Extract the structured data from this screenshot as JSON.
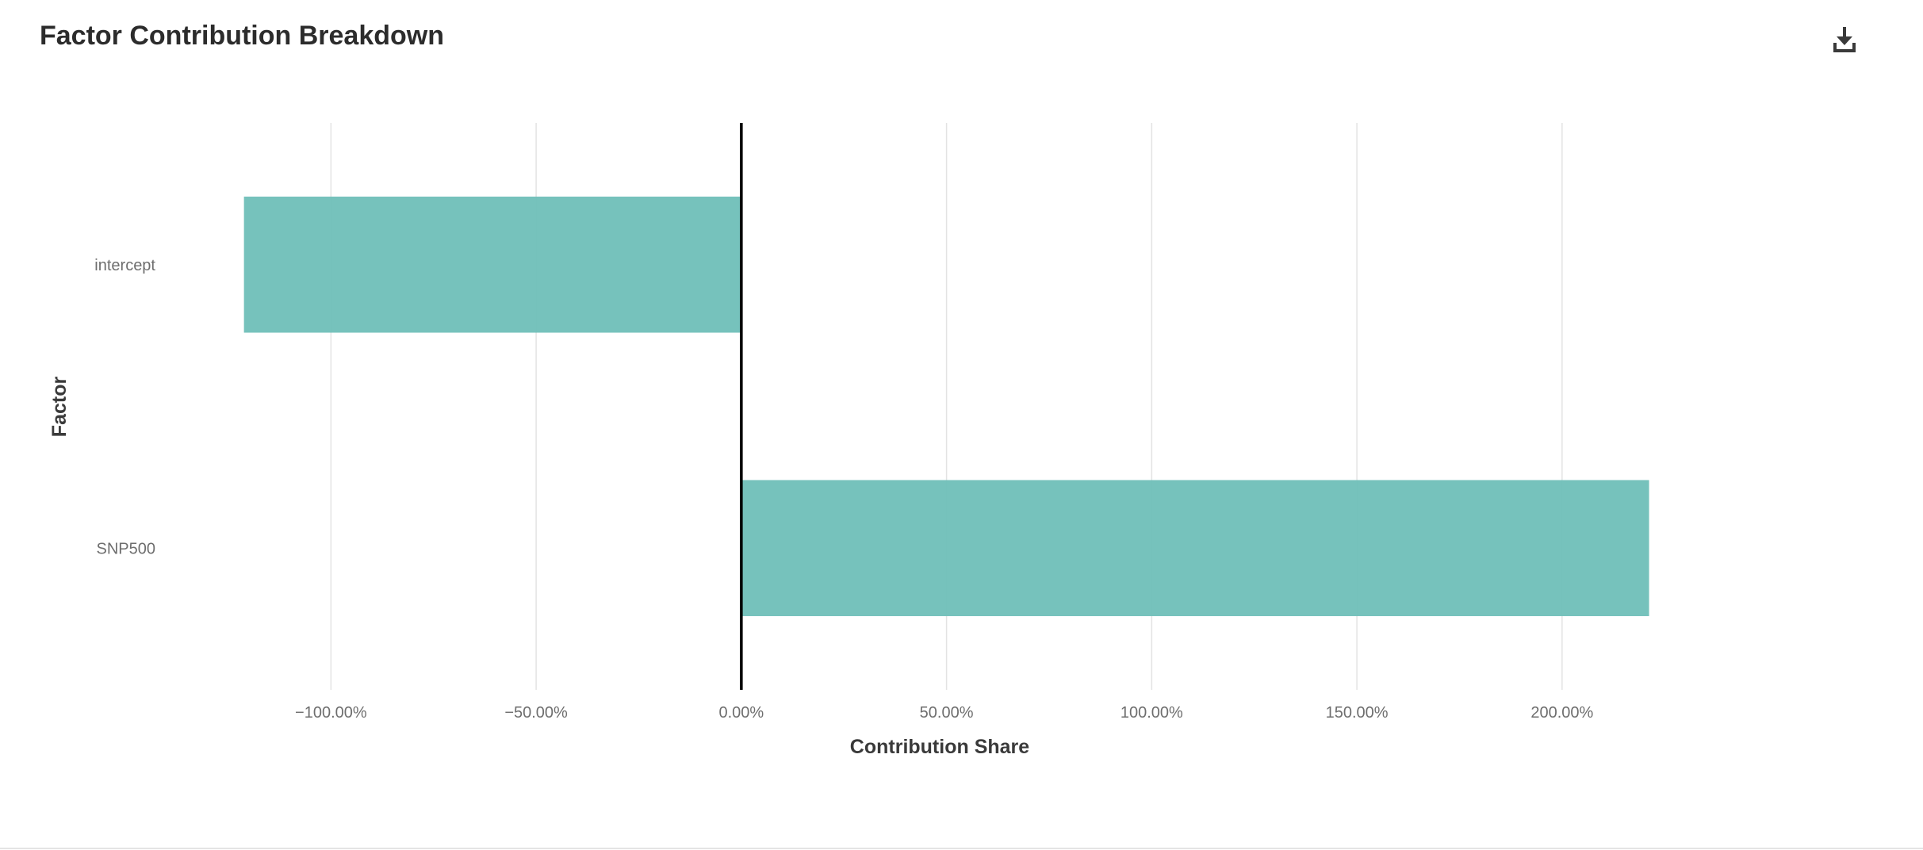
{
  "header": {
    "title": "Factor Contribution Breakdown",
    "download_icon": "download-icon"
  },
  "chart_data": {
    "type": "bar",
    "orientation": "horizontal",
    "title": "Factor Contribution Breakdown",
    "xlabel": "Contribution Share",
    "ylabel": "Factor",
    "categories": [
      "intercept",
      "SNP500"
    ],
    "values": [
      -121.2,
      221.2
    ],
    "value_unit": "%",
    "xlim": [
      -142,
      258
    ],
    "xticks": [
      -100,
      -50,
      0,
      50,
      100,
      150,
      200
    ],
    "xtick_labels": [
      "−100.00%",
      "−50.00%",
      "0.00%",
      "50.00%",
      "100.00%",
      "150.00%",
      "200.00%"
    ],
    "grid": "vertical",
    "bar_color": "#6fbfb8",
    "zero_line_color": "#000000",
    "grid_color": "#e3e3e3"
  }
}
